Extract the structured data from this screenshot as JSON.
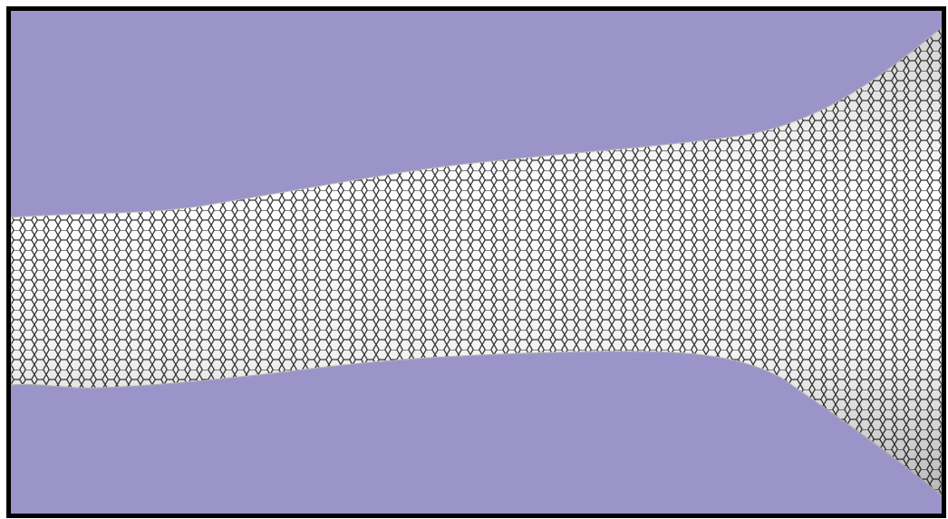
{
  "scene": {
    "subject": "nanotube-mesh",
    "colors": {
      "background": "#9b94c8",
      "mesh_fill": "#ffffff",
      "mesh_stroke": "#3a3a3a",
      "frame_border": "#000000"
    }
  }
}
